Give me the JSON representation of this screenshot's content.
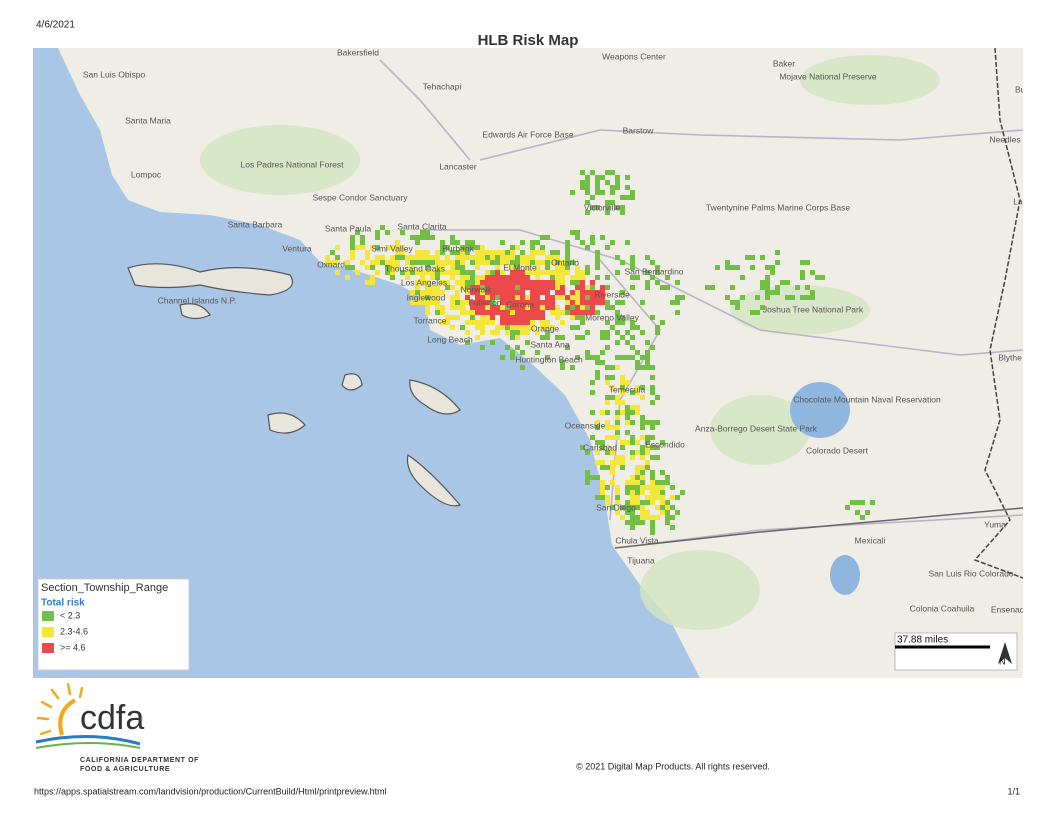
{
  "header": {
    "date": "4/6/2021",
    "title": "HLB Risk Map"
  },
  "map": {
    "places": [
      "Bakersfield",
      "Weapons Center",
      "Baker",
      "Mojave National Preserve",
      "San Luis Obispo",
      "Tehachapi",
      "Bullhead City",
      "Edwards Air Force Base",
      "Barstow",
      "Needles",
      "Santa Maria",
      "Los Padres National Forest",
      "Lancaster",
      "Lompoc",
      "Sespe Condor Sanctuary",
      "Victorville",
      "Twentynine Palms Marine Corps Base",
      "Lake Havasu",
      "Santa Barbara",
      "Santa Paula",
      "Santa Clarita",
      "Ventura",
      "Simi Valley",
      "Burbank",
      "Oxnard",
      "Thousand Oaks",
      "El Monte",
      "Ontario",
      "San Bernardino",
      "Channel Islands N.P.",
      "Los Angeles",
      "Riverside",
      "Inglewood",
      "Norwalk",
      "Corona",
      "Joshua Tree National Park",
      "Torrance",
      "Fullerton",
      "Orange",
      "Moreno Valley",
      "Long Beach",
      "Santa Ana",
      "Huntington Beach",
      "Blythe",
      "Temecula",
      "Chocolate Mountain Naval Reservation",
      "Oceanside",
      "Anza-Borrego Desert State Park",
      "Carlsbad",
      "Escondido",
      "Colorado Desert",
      "San Diego",
      "Yuma",
      "Chula Vista",
      "Mexicali",
      "Tijuana",
      "San Luis Rio Colorado",
      "Colonia Coahuila",
      "Ensenada"
    ]
  },
  "legend": {
    "layer": "Section_Township_Range",
    "title": "Total risk",
    "items": [
      {
        "label": "< 2.3",
        "color": "#72c043"
      },
      {
        "label": "2.3-4.6",
        "color": "#f5e63a"
      },
      {
        "label": ">= 4.6",
        "color": "#ec4a4a"
      }
    ]
  },
  "scale": {
    "label": "37.88 miles",
    "north": "N"
  },
  "logo": {
    "name": "cdfa",
    "line1": "CALIFORNIA DEPARTMENT OF",
    "line2": "FOOD & AGRICULTURE"
  },
  "copyright": "© 2021 Digital Map Products. All rights reserved.",
  "footer": {
    "url": "https://apps.spatialstream.com/landvision/production/CurrentBuild/Html/printpreview.html",
    "page": "1/1"
  }
}
